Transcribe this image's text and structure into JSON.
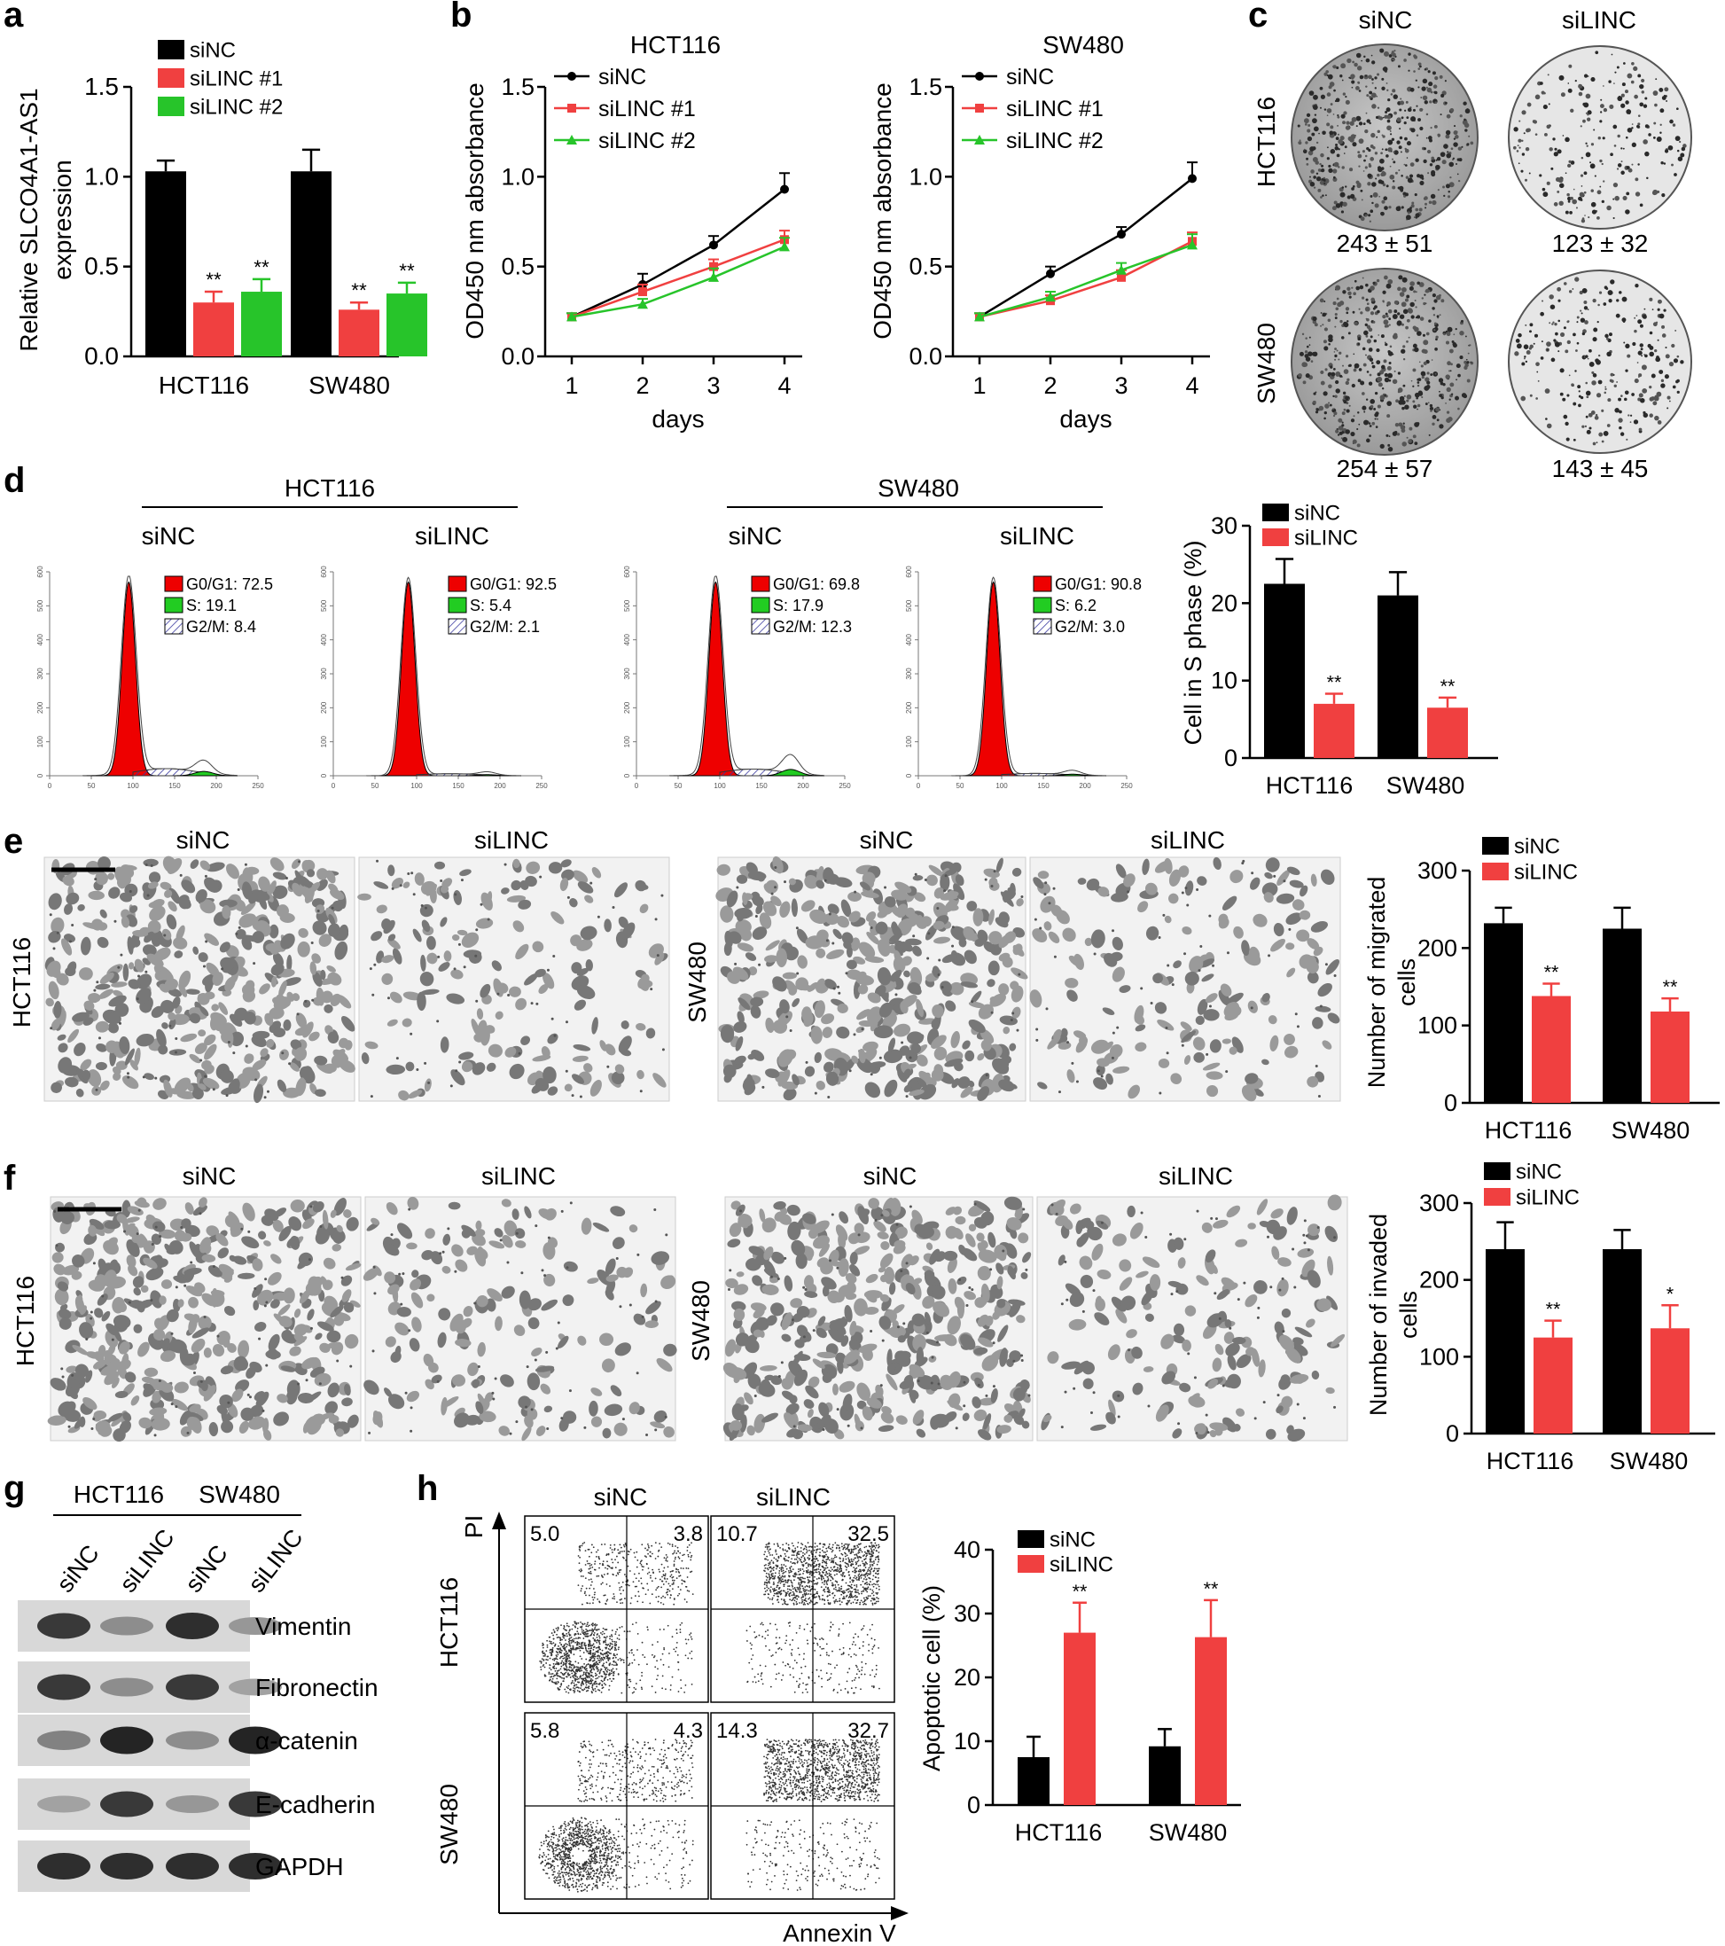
{
  "colors": {
    "black": "#000000",
    "red": "#f04040",
    "green": "#27c42a",
    "histRed": "#ee0000",
    "histGreen": "#22cc22",
    "histHatch": "#3a3aa0",
    "micro": "#8a8a8a",
    "dish": "#b9b9b9",
    "blot": "#d8d8d8"
  },
  "panels": {
    "a": {
      "letter": "a",
      "chart_data": {
        "type": "bar",
        "categories": [
          "HCT116",
          "SW480"
        ],
        "series": [
          {
            "name": "siNC",
            "color": "black",
            "values": [
              1.03,
              1.03
            ],
            "errors": [
              0.06,
              0.12
            ],
            "stars": [
              "",
              ""
            ]
          },
          {
            "name": "siLINC #1",
            "color": "red",
            "values": [
              0.3,
              0.26
            ],
            "errors": [
              0.06,
              0.04
            ],
            "stars": [
              "**",
              "**"
            ]
          },
          {
            "name": "siLINC #2",
            "color": "green",
            "values": [
              0.36,
              0.35
            ],
            "errors": [
              0.07,
              0.06
            ],
            "stars": [
              "**",
              "**"
            ]
          }
        ],
        "ylabel_lines": [
          "Relative SLCO4A1-AS1",
          "expression"
        ],
        "ylim": [
          0,
          1.5
        ],
        "yticks": [
          0,
          0.5,
          1.0,
          1.5
        ],
        "ytick_labels": [
          "0.0",
          "0.5",
          "1.0",
          "1.5"
        ],
        "legend_position": "top-left"
      }
    },
    "b": {
      "letter": "b",
      "chart_data": [
        {
          "type": "line",
          "title": "HCT116",
          "x": [
            1,
            2,
            3,
            4
          ],
          "xlabel": "days",
          "ylabel": "OD450 nm absorbance",
          "ylim": [
            0,
            1.5
          ],
          "yticks": [
            0,
            0.5,
            1.0,
            1.5
          ],
          "ytick_labels": [
            "0.0",
            "0.5",
            "1.0",
            "1.5"
          ],
          "series": [
            {
              "name": "siNC",
              "color": "black",
              "marker": "circle",
              "values": [
                0.22,
                0.4,
                0.62,
                0.93
              ],
              "errors": [
                0.02,
                0.06,
                0.05,
                0.09
              ]
            },
            {
              "name": "siLINC #1",
              "color": "red",
              "marker": "square",
              "values": [
                0.22,
                0.36,
                0.5,
                0.65
              ],
              "errors": [
                0.02,
                0.04,
                0.04,
                0.05
              ]
            },
            {
              "name": "siLINC #2",
              "color": "green",
              "marker": "triangle",
              "values": [
                0.22,
                0.29,
                0.44,
                0.61
              ],
              "errors": [
                0.02,
                0.03,
                0.05,
                0.05
              ]
            }
          ]
        },
        {
          "type": "line",
          "title": "SW480",
          "x": [
            1,
            2,
            3,
            4
          ],
          "xlabel": "days",
          "ylabel": "OD450 nm absorbance",
          "ylim": [
            0,
            1.5
          ],
          "yticks": [
            0,
            0.5,
            1.0,
            1.5
          ],
          "ytick_labels": [
            "0.0",
            "0.5",
            "1.0",
            "1.5"
          ],
          "series": [
            {
              "name": "siNC",
              "color": "black",
              "marker": "circle",
              "values": [
                0.22,
                0.46,
                0.68,
                0.99
              ],
              "errors": [
                0.02,
                0.04,
                0.04,
                0.09
              ]
            },
            {
              "name": "siLINC #1",
              "color": "red",
              "marker": "square",
              "values": [
                0.22,
                0.31,
                0.44,
                0.64
              ],
              "errors": [
                0.02,
                0.03,
                0.04,
                0.05
              ]
            },
            {
              "name": "siLINC #2",
              "color": "green",
              "marker": "triangle",
              "values": [
                0.22,
                0.33,
                0.48,
                0.62
              ],
              "errors": [
                0.02,
                0.03,
                0.04,
                0.06
              ]
            }
          ]
        }
      ]
    },
    "c": {
      "letter": "c",
      "cols": [
        "siNC",
        "siLINC"
      ],
      "rows": [
        "HCT116",
        "SW480"
      ],
      "counts": [
        [
          "243 ± 51",
          "123 ± 32"
        ],
        [
          "254 ± 57",
          "143 ± 45"
        ]
      ]
    },
    "d": {
      "letter": "d",
      "groups": [
        {
          "label": "HCT116",
          "items": [
            {
              "label": "siNC",
              "g0g1": "G0/G1: 72.5",
              "s": "S: 19.1",
              "g2m": "G2/M: 8.4"
            },
            {
              "label": "siLINC",
              "g0g1": "G0/G1: 92.5",
              "s": "S: 5.4",
              "g2m": "G2/M: 2.1"
            }
          ]
        },
        {
          "label": "SW480",
          "items": [
            {
              "label": "siNC",
              "g0g1": "G0/G1: 69.8",
              "s": "S: 17.9",
              "g2m": "G2/M: 12.3"
            },
            {
              "label": "siLINC",
              "g0g1": "G0/G1: 90.8",
              "s": "S: 6.2",
              "g2m": "G2/M: 3.0"
            }
          ]
        }
      ],
      "hist_xticks": [
        "0",
        "50",
        "100",
        "150",
        "200",
        "250"
      ],
      "hist_yticks": [
        "0",
        "100",
        "200",
        "300",
        "400",
        "500",
        "600"
      ],
      "chart_data": {
        "type": "bar",
        "categories": [
          "HCT116",
          "SW480"
        ],
        "series": [
          {
            "name": "siNC",
            "color": "black",
            "values": [
              22.5,
              21.0
            ],
            "errors": [
              3.2,
              3.0
            ],
            "stars": [
              "",
              ""
            ]
          },
          {
            "name": "siLINC",
            "color": "red",
            "values": [
              7.0,
              6.5
            ],
            "errors": [
              1.3,
              1.3
            ],
            "stars": [
              "**",
              "**"
            ]
          }
        ],
        "ylabel_lines": [
          "Cell in S phase (%)"
        ],
        "ylim": [
          0,
          30
        ],
        "yticks": [
          0,
          10,
          20,
          30
        ],
        "ytick_labels": [
          "0",
          "10",
          "20",
          "30"
        ],
        "legend_position": "top-left"
      }
    },
    "e": {
      "letter": "e",
      "cols": [
        "siNC",
        "siLINC"
      ],
      "rows": [
        "HCT116",
        "SW480"
      ],
      "chart_data": {
        "type": "bar",
        "categories": [
          "HCT116",
          "SW480"
        ],
        "series": [
          {
            "name": "siNC",
            "color": "black",
            "values": [
              232,
              225
            ],
            "errors": [
              20,
              27
            ],
            "stars": [
              "",
              ""
            ]
          },
          {
            "name": "siLINC",
            "color": "red",
            "values": [
              138,
              118
            ],
            "errors": [
              16,
              17
            ],
            "stars": [
              "**",
              "**"
            ]
          }
        ],
        "ylabel_lines": [
          "Number of migrated",
          "cells"
        ],
        "ylim": [
          0,
          300
        ],
        "yticks": [
          0,
          100,
          200,
          300
        ],
        "ytick_labels": [
          "0",
          "100",
          "200",
          "300"
        ],
        "legend_position": "top-left"
      }
    },
    "f": {
      "letter": "f",
      "cols": [
        "siNC",
        "siLINC"
      ],
      "rows": [
        "HCT116",
        "SW480"
      ],
      "chart_data": {
        "type": "bar",
        "categories": [
          "HCT116",
          "SW480"
        ],
        "series": [
          {
            "name": "siNC",
            "color": "black",
            "values": [
              240,
              240
            ],
            "errors": [
              35,
              25
            ],
            "stars": [
              "",
              ""
            ]
          },
          {
            "name": "siLINC",
            "color": "red",
            "values": [
              125,
              137
            ],
            "errors": [
              22,
              30
            ],
            "stars": [
              "**",
              "*"
            ]
          }
        ],
        "ylabel_lines": [
          "Number of invaded",
          "cells"
        ],
        "ylim": [
          0,
          300
        ],
        "yticks": [
          0,
          100,
          200,
          300
        ],
        "ytick_labels": [
          "0",
          "100",
          "200",
          "300"
        ],
        "legend_position": "top-left"
      }
    },
    "g": {
      "letter": "g",
      "groups": [
        "HCT116",
        "SW480"
      ],
      "lanes": [
        "siNC",
        "siLINC",
        "siNC",
        "siLINC"
      ],
      "proteins": [
        "Vimentin",
        "Fibronectin",
        "α-catenin",
        "E-cadherin",
        "GAPDH"
      ],
      "band_intensity": [
        [
          0.85,
          0.45,
          0.9,
          0.4
        ],
        [
          0.85,
          0.45,
          0.85,
          0.35
        ],
        [
          0.5,
          0.95,
          0.45,
          0.95
        ],
        [
          0.35,
          0.85,
          0.4,
          0.85
        ],
        [
          0.9,
          0.9,
          0.9,
          0.9
        ]
      ]
    },
    "h": {
      "letter": "h",
      "cols": [
        "siNC",
        "siLINC"
      ],
      "rows": [
        "HCT116",
        "SW480"
      ],
      "quadrants": [
        [
          {
            "ul": "5.0",
            "ur": "3.8"
          },
          {
            "ul": "10.7",
            "ur": "32.5"
          }
        ],
        [
          {
            "ul": "5.8",
            "ur": "4.3"
          },
          {
            "ul": "14.3",
            "ur": "32.7"
          }
        ]
      ],
      "yaxis": "PI",
      "xaxis": "Annexin V",
      "chart_data": {
        "type": "bar",
        "categories": [
          "HCT116",
          "SW480"
        ],
        "series": [
          {
            "name": "siNC",
            "color": "black",
            "values": [
              7.5,
              9.2
            ],
            "errors": [
              3.2,
              2.7
            ],
            "stars": [
              "",
              ""
            ]
          },
          {
            "name": "siLINC",
            "color": "red",
            "values": [
              27.0,
              26.3
            ],
            "errors": [
              4.7,
              5.8
            ],
            "stars": [
              "**",
              "**"
            ]
          }
        ],
        "ylabel_lines": [
          "Apoptotic cell (%)"
        ],
        "ylim": [
          0,
          40
        ],
        "yticks": [
          0,
          10,
          20,
          30,
          40
        ],
        "ytick_labels": [
          "0",
          "10",
          "20",
          "30",
          "40"
        ],
        "legend_position": "top-left"
      }
    }
  }
}
